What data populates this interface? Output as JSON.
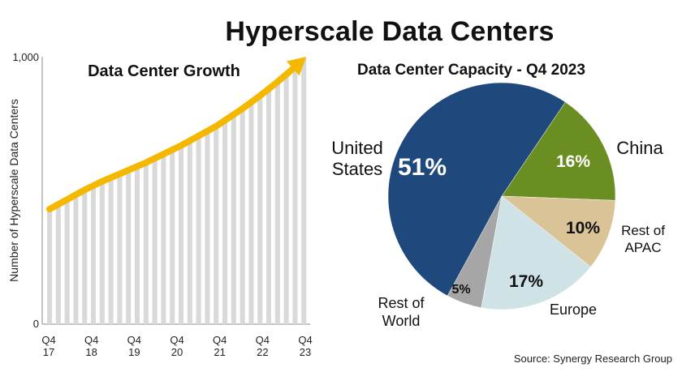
{
  "title": "Hyperscale Data Centers",
  "source": "Source: Synergy Research Group",
  "chart_data": [
    {
      "type": "bar",
      "title": "Data Center Growth",
      "ylabel": "Number of Hyperscale Data Centers",
      "ylim": [
        0,
        1000
      ],
      "ytick_labels": [
        "0",
        "1,000"
      ],
      "xtick_labels": [
        [
          "Q4",
          "17"
        ],
        [
          "Q4",
          "18"
        ],
        [
          "Q4",
          "19"
        ],
        [
          "Q4",
          "20"
        ],
        [
          "Q4",
          "21"
        ],
        [
          "Q4",
          "22"
        ],
        [
          "Q4",
          "23"
        ]
      ],
      "values": [
        430,
        448,
        466,
        484,
        502,
        518,
        534,
        548,
        562,
        576,
        590,
        604,
        620,
        636,
        652,
        668,
        686,
        704,
        722,
        740,
        762,
        784,
        806,
        830,
        854,
        880,
        906,
        934,
        962,
        992
      ],
      "trend_color": "#F5B800",
      "bar_color": "#D9D9D9"
    },
    {
      "type": "pie",
      "title": "Data Center Capacity - Q4 2023",
      "slices": [
        {
          "label": [
            "United",
            "States"
          ],
          "value": 51,
          "value_label": "51%",
          "color": "#1F497D"
        },
        {
          "label": [
            "China"
          ],
          "value": 16,
          "value_label": "16%",
          "color": "#6B8E23"
        },
        {
          "label": [
            "Rest of",
            "APAC"
          ],
          "value": 10,
          "value_label": "10%",
          "color": "#D9C397"
        },
        {
          "label": [
            "Europe"
          ],
          "value": 17,
          "value_label": "17%",
          "color": "#CFE3E6"
        },
        {
          "label": [
            "Rest of",
            "World"
          ],
          "value": 5,
          "value_label": "5%",
          "color": "#A6A6A6"
        }
      ]
    }
  ]
}
